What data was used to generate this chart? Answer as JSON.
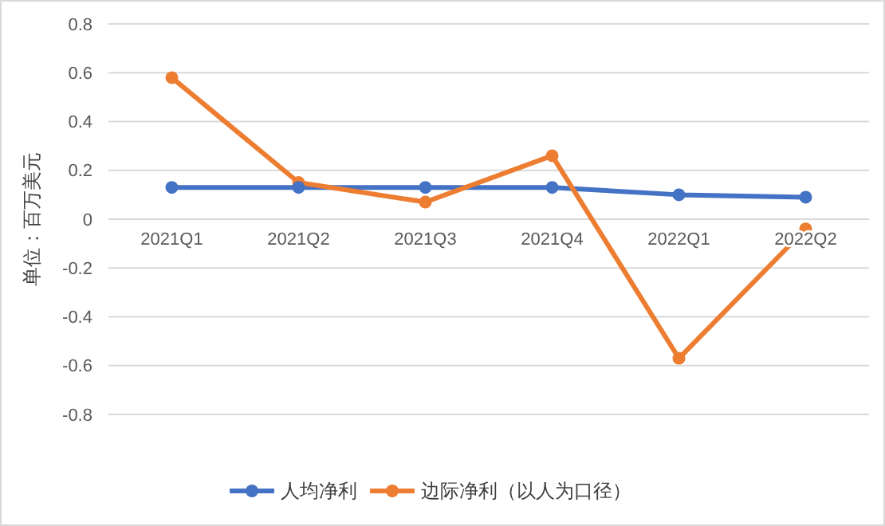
{
  "chart_data": {
    "type": "line",
    "ylabel": "单位：百万美元",
    "categories": [
      "2021Q1",
      "2021Q2",
      "2021Q3",
      "2021Q4",
      "2022Q1",
      "2022Q2"
    ],
    "series": [
      {
        "name": "人均净利",
        "color": "#4472c4",
        "values": [
          0.13,
          0.13,
          0.13,
          0.13,
          0.1,
          0.09
        ]
      },
      {
        "name": "边际净利（以人为口径）",
        "color": "#ed7d31",
        "values": [
          0.58,
          0.15,
          0.07,
          0.26,
          -0.57,
          -0.04
        ]
      }
    ],
    "ylim": [
      -0.8,
      0.8
    ],
    "yticks": [
      -0.8,
      -0.6,
      -0.4,
      -0.2,
      0,
      0.2,
      0.4,
      0.6,
      0.8
    ],
    "grid": "y",
    "legend": "bottom",
    "marker": "circle",
    "line_style": "solid"
  }
}
